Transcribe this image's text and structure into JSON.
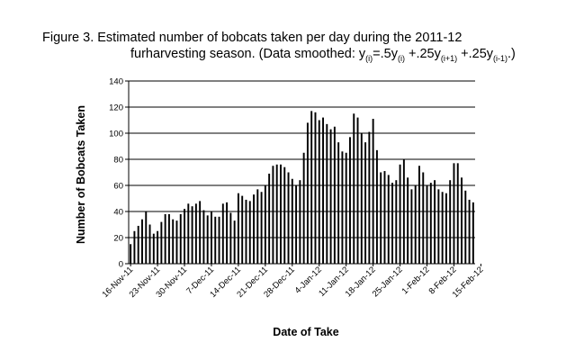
{
  "figure": {
    "caption_line1": "Figure 3.  Estimated number of bobcats taken per day during the 2011-12",
    "caption_line2_text": "furharvesting season. (Data smoothed:  ",
    "formula": {
      "y1": "y",
      "s1": "(i)",
      "eq": "=.5y",
      "s2": "(i)",
      "p1": " +.25y",
      "s3": "(i+1)",
      "p2": " +.25y",
      "s4": "(i-1)",
      "tail": ".)"
    }
  },
  "chart_data": {
    "type": "bar",
    "title": "Figure 3.  Estimated number of bobcats taken per day during the 2011-12 furharvesting season. (Data smoothed:  y(i)=.5y(i) +.25y(i+1) +.25y(i-1).)",
    "xlabel": "Date of Take",
    "ylabel": "Number of Bobcats Taken",
    "ylim": [
      0,
      140
    ],
    "yticks": [
      0,
      20,
      40,
      60,
      80,
      100,
      120,
      140
    ],
    "grid": true,
    "legend": "none",
    "bar_color": "#000000",
    "start_label": "16-Nov-11",
    "x_tick_labels": [
      "16-Nov-11",
      "23-Nov-11",
      "30-Nov-11",
      "7-Dec-11",
      "14-Dec-11",
      "21-Dec-11",
      "28-Dec-11",
      "4-Jan-12",
      "11-Jan-12",
      "18-Jan-12",
      "25-Jan-12",
      "1-Feb-12",
      "8-Feb-12",
      "15-Feb-12"
    ],
    "values": [
      15,
      25,
      29,
      34,
      40,
      30,
      23,
      25,
      32,
      38,
      38,
      34,
      33,
      38,
      42,
      46,
      44,
      46,
      48,
      41,
      37,
      40,
      36,
      36,
      46,
      47,
      39,
      33,
      54,
      52,
      49,
      48,
      53,
      57,
      55,
      60,
      69,
      75,
      76,
      76,
      74,
      70,
      65,
      60,
      64,
      85,
      108,
      117,
      116,
      110,
      112,
      107,
      103,
      105,
      93,
      86,
      85,
      97,
      115,
      112,
      100,
      93,
      101,
      111,
      87,
      70,
      71,
      68,
      62,
      64,
      76,
      80,
      66,
      57,
      60,
      75,
      70,
      60,
      62,
      64,
      57,
      55,
      54,
      64,
      77,
      77,
      66,
      56,
      49,
      47
    ]
  }
}
